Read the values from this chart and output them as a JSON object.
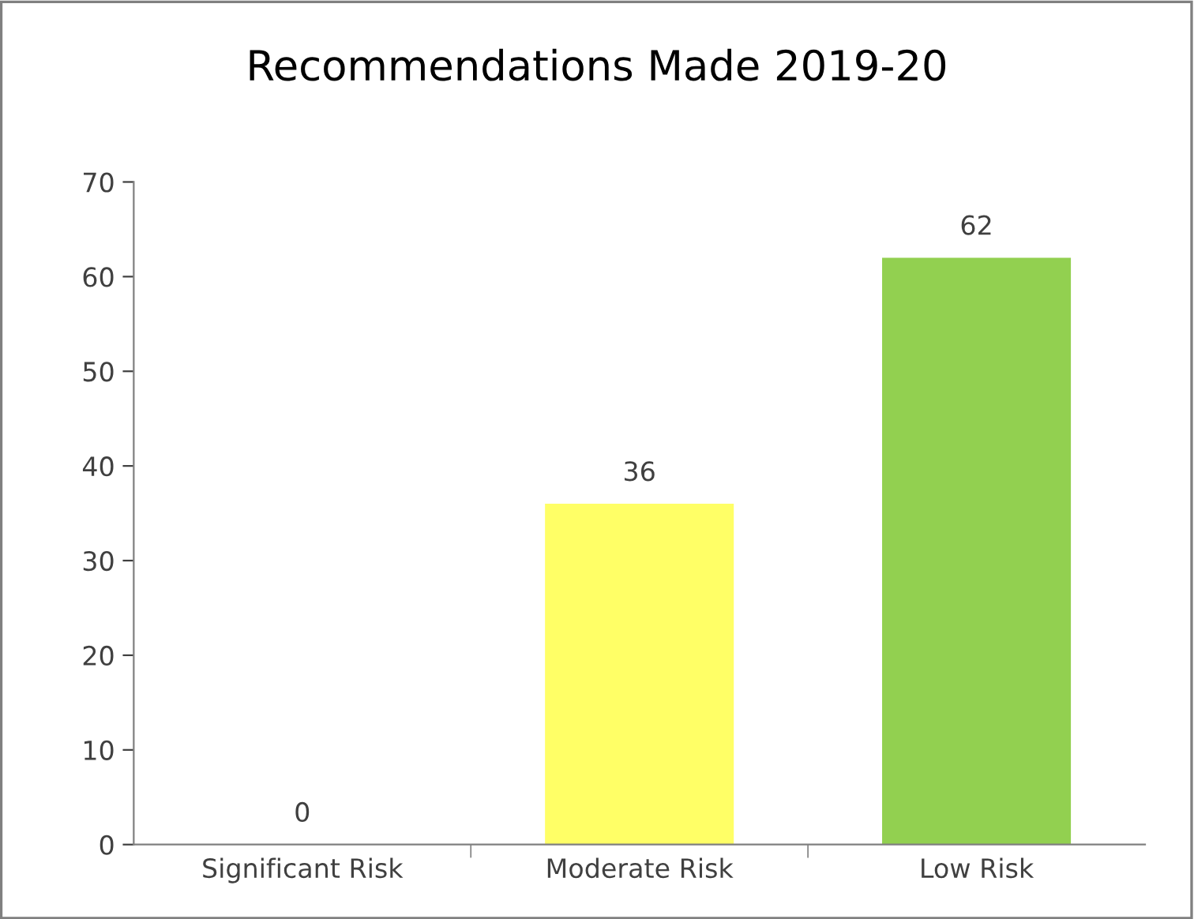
{
  "chart_data": {
    "type": "bar",
    "title": "Recommendations Made 2019-20",
    "categories": [
      "Significant Risk",
      "Moderate Risk",
      "Low Risk"
    ],
    "values": [
      0,
      36,
      62
    ],
    "colors": [
      "#ff0000",
      "#ffff66",
      "#92d050"
    ],
    "ylim": [
      0,
      70
    ],
    "yticks": [
      0,
      10,
      20,
      30,
      40,
      50,
      60,
      70
    ],
    "data_labels": true,
    "grid": false,
    "legend": false
  }
}
